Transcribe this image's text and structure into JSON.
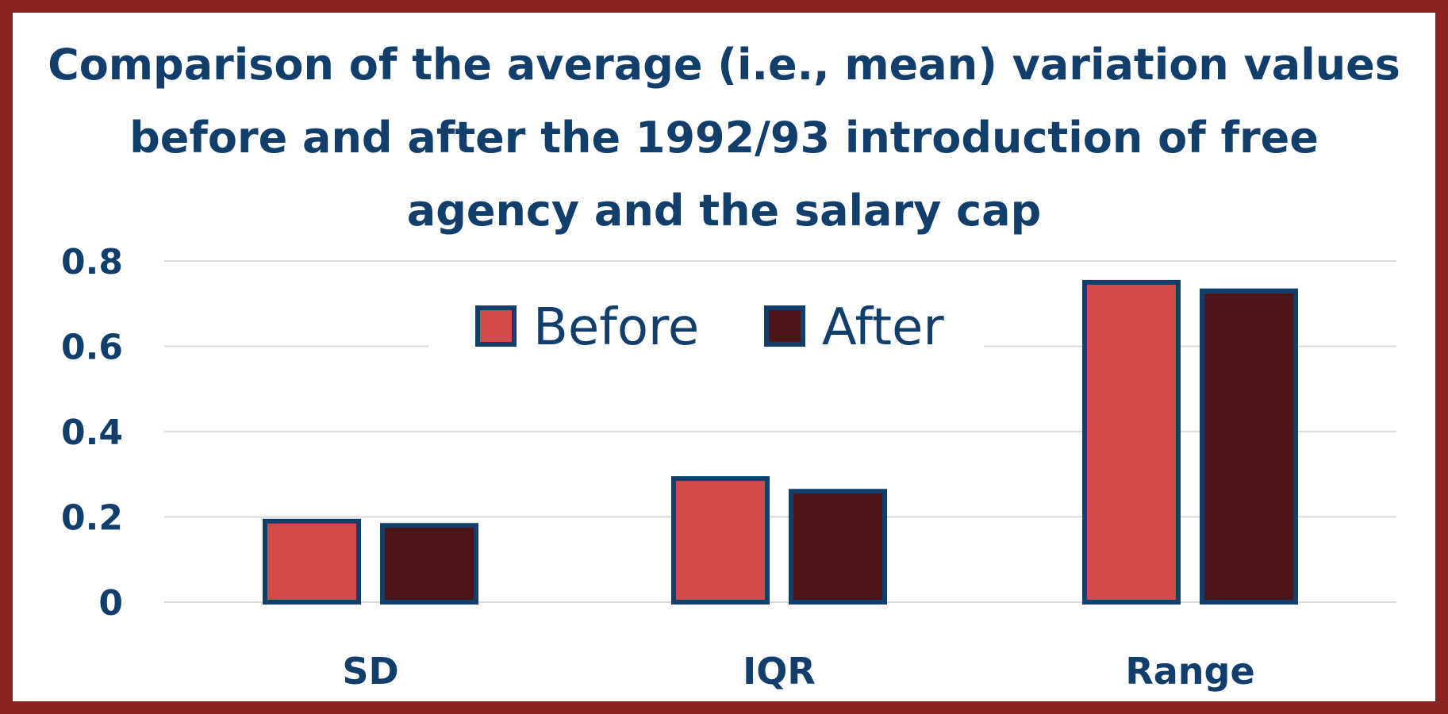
{
  "chart_data": {
    "type": "bar",
    "title_lines": [
      "Comparison of the average (i.e., mean) variation values",
      "before and after the 1992/93 introduction of free",
      "agency and the salary cap"
    ],
    "categories": [
      "SD",
      "IQR",
      "Range"
    ],
    "series": [
      {
        "name": "Before",
        "values": [
          0.19,
          0.29,
          0.75
        ],
        "color": "#d04a4a"
      },
      {
        "name": "After",
        "values": [
          0.18,
          0.26,
          0.73
        ],
        "color": "#4c1618"
      }
    ],
    "ylim": [
      0,
      0.8
    ],
    "yticks": [
      {
        "value": 0,
        "label": "0"
      },
      {
        "value": 0.2,
        "label": "0.2"
      },
      {
        "value": 0.4,
        "label": "0.4"
      },
      {
        "value": 0.6,
        "label": "0.6"
      },
      {
        "value": 0.8,
        "label": "0.8"
      }
    ],
    "grid": true,
    "legend_position": "top-center",
    "bar_border_color": "#123e6b",
    "gridline_color": "#d9d9d9",
    "text_color": "#123e6b",
    "frame_color": "#8b2323"
  }
}
